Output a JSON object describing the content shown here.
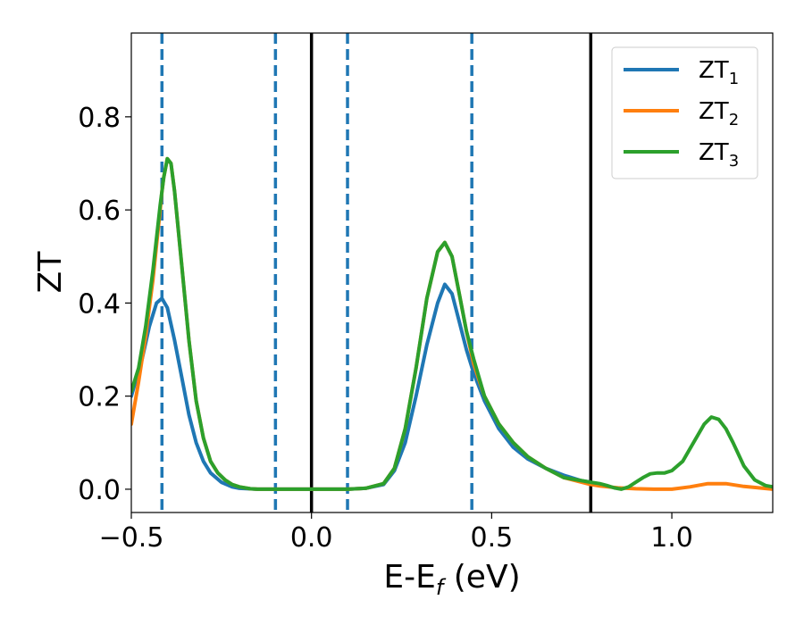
{
  "chart_data": {
    "type": "line",
    "xlabel": {
      "main": "E-E",
      "sub": "f",
      "unit": " (eV)"
    },
    "ylabel": "ZT",
    "xlim": [
      -0.5,
      1.28
    ],
    "ylim": [
      -0.05,
      0.98
    ],
    "x_ticks": [
      -0.5,
      0.0,
      0.5,
      1.0
    ],
    "x_tick_labels": [
      "−0.5",
      "0.0",
      "0.5",
      "1.0"
    ],
    "y_ticks": [
      0.0,
      0.2,
      0.4,
      0.6,
      0.8
    ],
    "y_tick_labels": [
      "0.0",
      "0.2",
      "0.4",
      "0.6",
      "0.8"
    ],
    "grid": false,
    "legend_position": "top-right",
    "dashed_vlines": {
      "x": [
        -0.415,
        -0.1,
        0.1,
        0.445
      ],
      "color": "#1f77b4"
    },
    "solid_vlines": {
      "x": [
        0.0,
        0.775
      ],
      "color": "#000000"
    },
    "series": [
      {
        "name": "ZT",
        "sub": "1",
        "color": "#1f77b4",
        "x": [
          -0.5,
          -0.47,
          -0.45,
          -0.43,
          -0.415,
          -0.4,
          -0.38,
          -0.36,
          -0.34,
          -0.32,
          -0.3,
          -0.28,
          -0.25,
          -0.22,
          -0.2,
          -0.15,
          -0.1,
          0.0,
          0.1,
          0.15,
          0.2,
          0.23,
          0.26,
          0.29,
          0.32,
          0.35,
          0.37,
          0.39,
          0.41,
          0.43,
          0.45,
          0.48,
          0.52,
          0.56,
          0.6,
          0.65,
          0.7,
          0.75,
          0.775
        ],
        "y": [
          0.2,
          0.28,
          0.35,
          0.4,
          0.41,
          0.39,
          0.32,
          0.24,
          0.16,
          0.1,
          0.06,
          0.035,
          0.015,
          0.005,
          0.002,
          0.0,
          0.0,
          0.0,
          0.0,
          0.002,
          0.01,
          0.04,
          0.1,
          0.2,
          0.31,
          0.4,
          0.44,
          0.42,
          0.36,
          0.3,
          0.25,
          0.19,
          0.13,
          0.09,
          0.065,
          0.045,
          0.03,
          0.018,
          0.015
        ]
      },
      {
        "name": "ZT",
        "sub": "2",
        "color": "#ff7f0e",
        "x": [
          -0.5,
          -0.48,
          -0.46,
          -0.44,
          -0.42,
          -0.415,
          -0.41,
          -0.4,
          -0.39,
          -0.38,
          -0.36,
          -0.34,
          -0.32,
          -0.3,
          -0.28,
          -0.26,
          -0.24,
          -0.22,
          -0.2,
          -0.17,
          -0.15,
          -0.1,
          0.0,
          0.1,
          0.15,
          0.2,
          0.23,
          0.26,
          0.29,
          0.32,
          0.35,
          0.37,
          0.39,
          0.41,
          0.43,
          0.45,
          0.48,
          0.52,
          0.56,
          0.6,
          0.65,
          0.7,
          0.775,
          0.8,
          0.85,
          0.9,
          0.95,
          1.0,
          1.05,
          1.1,
          1.15,
          1.2,
          1.28
        ],
        "y": [
          0.14,
          0.23,
          0.33,
          0.45,
          0.6,
          0.64,
          0.67,
          0.71,
          0.7,
          0.64,
          0.48,
          0.32,
          0.19,
          0.11,
          0.06,
          0.035,
          0.02,
          0.01,
          0.005,
          0.001,
          0.0,
          0.0,
          0.0,
          0.0,
          0.002,
          0.012,
          0.045,
          0.13,
          0.26,
          0.41,
          0.51,
          0.53,
          0.5,
          0.42,
          0.34,
          0.27,
          0.2,
          0.14,
          0.1,
          0.07,
          0.045,
          0.025,
          0.01,
          0.007,
          0.003,
          0.001,
          0.0,
          0.0,
          0.005,
          0.012,
          0.012,
          0.006,
          0.0
        ]
      },
      {
        "name": "ZT",
        "sub": "3",
        "color": "#2ca02c",
        "x": [
          -0.5,
          -0.48,
          -0.46,
          -0.44,
          -0.42,
          -0.415,
          -0.41,
          -0.4,
          -0.39,
          -0.38,
          -0.36,
          -0.34,
          -0.32,
          -0.3,
          -0.28,
          -0.26,
          -0.24,
          -0.22,
          -0.2,
          -0.17,
          -0.15,
          -0.1,
          0.0,
          0.1,
          0.15,
          0.2,
          0.23,
          0.26,
          0.29,
          0.32,
          0.35,
          0.37,
          0.39,
          0.41,
          0.43,
          0.45,
          0.48,
          0.52,
          0.56,
          0.6,
          0.65,
          0.7,
          0.775,
          0.8,
          0.82,
          0.84,
          0.86,
          0.88,
          0.9,
          0.92,
          0.94,
          0.96,
          0.98,
          1.0,
          1.03,
          1.06,
          1.09,
          1.11,
          1.13,
          1.15,
          1.17,
          1.2,
          1.23,
          1.26,
          1.28
        ],
        "y": [
          0.21,
          0.26,
          0.35,
          0.47,
          0.61,
          0.64,
          0.67,
          0.71,
          0.7,
          0.64,
          0.48,
          0.32,
          0.19,
          0.11,
          0.06,
          0.035,
          0.02,
          0.01,
          0.005,
          0.001,
          0.0,
          0.0,
          0.0,
          0.0,
          0.002,
          0.012,
          0.045,
          0.13,
          0.26,
          0.41,
          0.51,
          0.53,
          0.5,
          0.42,
          0.34,
          0.28,
          0.2,
          0.14,
          0.1,
          0.07,
          0.045,
          0.025,
          0.015,
          0.012,
          0.008,
          0.003,
          0.0,
          0.005,
          0.015,
          0.025,
          0.033,
          0.035,
          0.035,
          0.04,
          0.06,
          0.1,
          0.14,
          0.155,
          0.15,
          0.13,
          0.1,
          0.05,
          0.02,
          0.008,
          0.005
        ]
      }
    ]
  }
}
